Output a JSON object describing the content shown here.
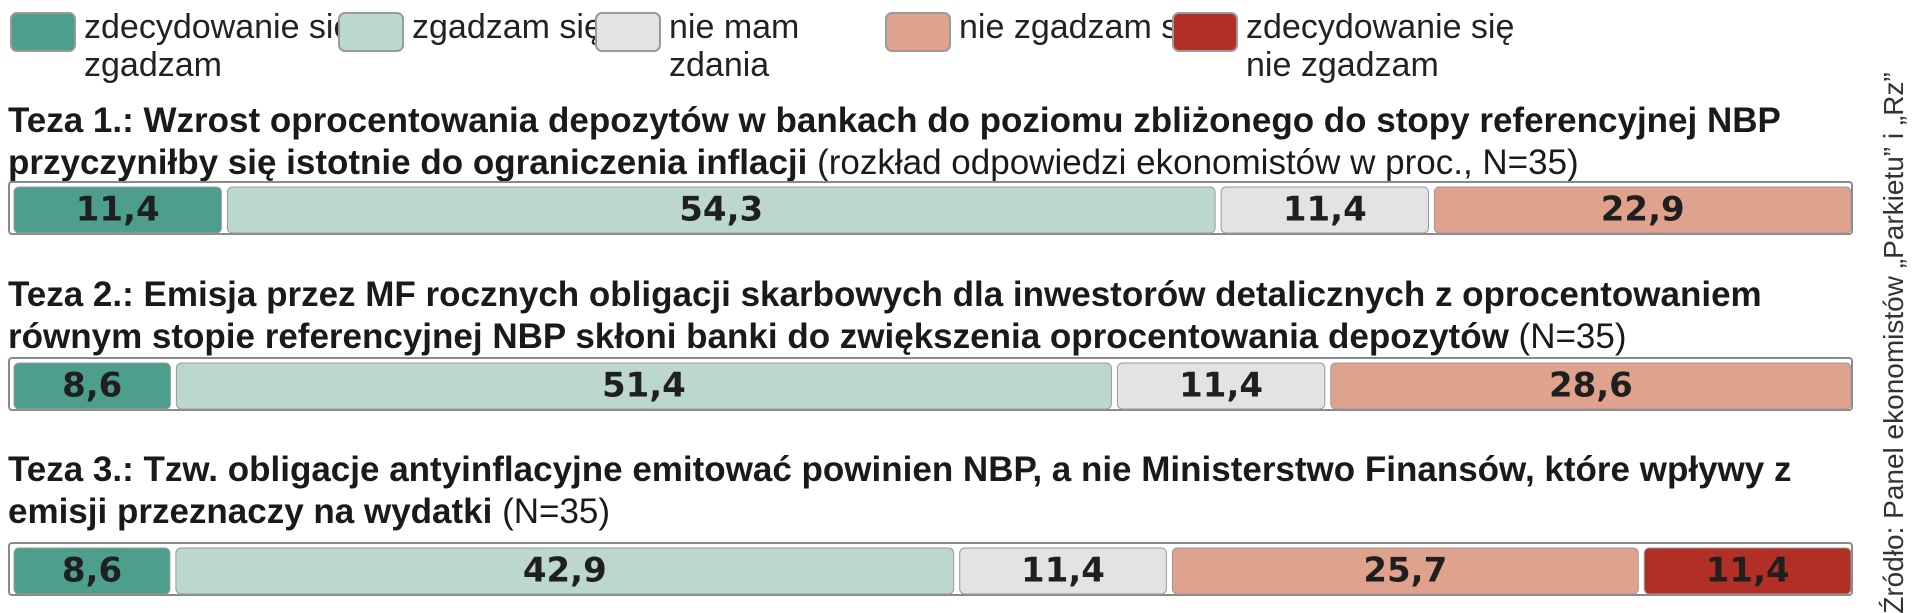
{
  "legend": [
    {
      "label_line1": "zdecydowanie się",
      "label_line2": "zgadzam",
      "color": "#4e9e8e"
    },
    {
      "label_line1": "zgadzam się",
      "label_line2": "",
      "color": "#bcd7cf"
    },
    {
      "label_line1": "nie mam",
      "label_line2": "zdania",
      "color": "#e3e3e3"
    },
    {
      "label_line1": "nie zgadzam się",
      "label_line2": "",
      "color": "#dfa38d"
    },
    {
      "label_line1": "zdecydowanie się",
      "label_line2": "nie zgadzam",
      "color": "#b22f26"
    }
  ],
  "questions": [
    {
      "title_bold": "Teza 1.: Wzrost oprocentowania depozytów w bankach do poziomu zbliżonego do stopy referencyjnej NBP przyczyniłby się istotnie do ograniczenia inflacji",
      "title_note": " (rozkład odpowiedzi ekonomistów w proc., N=35)"
    },
    {
      "title_bold": "Teza 2.: Emisja przez MF rocznych obligacji skarbowych dla inwestorów detalicznych z oprocentowaniem równym stopie referencyjnej NBP skłoni banki do zwiększenia oprocentowania depozytów",
      "title_note": " (N=35)"
    },
    {
      "title_bold": "Teza 3.: Tzw. obligacje antyinflacyjne emitować powinien NBP, a nie Ministerstwo Finansów, które wpływy z emisji przeznaczy na wydatki",
      "title_note": " (N=35)"
    }
  ],
  "source": "Źródło: Panel ekonomistów „Parkietu” i „Rz”",
  "chart_data": {
    "type": "bar",
    "orientation": "horizontal-stacked-100",
    "categories": [
      "Teza 1.",
      "Teza 2.",
      "Teza 3."
    ],
    "series": [
      {
        "name": "zdecydowanie się zgadzam",
        "color": "#4e9e8e",
        "values": [
          11.4,
          8.6,
          8.6
        ],
        "labels": [
          "11,4",
          "8,6",
          "8,6"
        ]
      },
      {
        "name": "zgadzam się",
        "color": "#bcd7cf",
        "values": [
          54.3,
          51.4,
          42.9
        ],
        "labels": [
          "54,3",
          "51,4",
          "42,9"
        ]
      },
      {
        "name": "nie mam zdania",
        "color": "#e3e3e3",
        "values": [
          11.4,
          11.4,
          11.4
        ],
        "labels": [
          "11,4",
          "11,4",
          "11,4"
        ]
      },
      {
        "name": "nie zgadzam się",
        "color": "#dfa38d",
        "values": [
          22.9,
          28.6,
          25.7
        ],
        "labels": [
          "22,9",
          "28,6",
          "25,7"
        ]
      },
      {
        "name": "zdecydowanie się nie zgadzam",
        "color": "#b22f26",
        "values": [
          0,
          0,
          11.4
        ],
        "labels": [
          "",
          "",
          "11,4"
        ]
      }
    ],
    "xlim": [
      0,
      100
    ],
    "legend_position": "top"
  }
}
